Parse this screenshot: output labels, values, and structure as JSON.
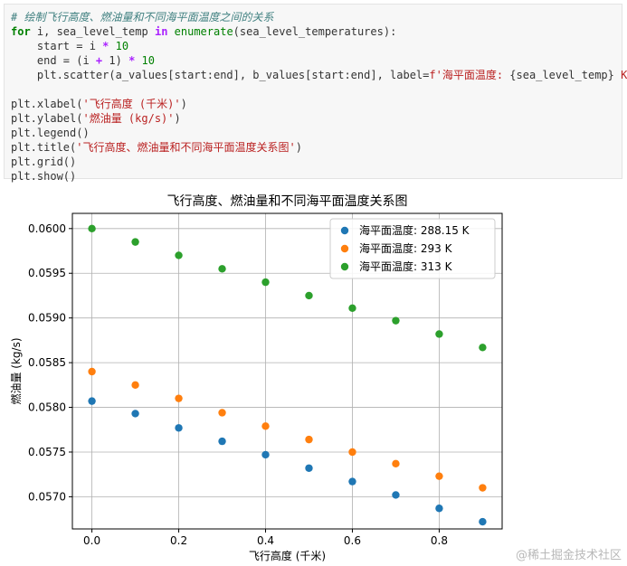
{
  "code": {
    "comment": "# 绘制飞行高度、燃油量和不同海平面温度之间的关系",
    "for_kw": "for",
    "for_vars": " i, sea_level_temp ",
    "in_kw": "in",
    "enumerate": " enumerate",
    "for_rest": "(sea_level_temperatures):",
    "start_prefix": "    start = i ",
    "start_op": "*",
    "start_num": " 10",
    "end_prefix": "    end = (i ",
    "end_op1": "+",
    "end_mid": " 1) ",
    "end_op2": "*",
    "end_num": " 10",
    "scatter_prefix": "    plt.scatter(a_values[start:end], b_values[start:end], label=",
    "scatter_fstr": "f'海平面温度: ",
    "scatter_var": "{sea_level_temp}",
    "scatter_str_end": " K'",
    "scatter_close": ")",
    "xlabel_prefix": "plt.xlabel(",
    "xlabel_str": "'飞行高度 (千米)'",
    "xlabel_close": ")",
    "ylabel_prefix": "plt.ylabel(",
    "ylabel_str": "'燃油量 (kg/s)'",
    "ylabel_close": ")",
    "legend_line": "plt.legend()",
    "title_prefix": "plt.title(",
    "title_str": "'飞行高度、燃油量和不同海平面温度关系图'",
    "title_close": ")",
    "grid_line": "plt.grid()",
    "show_line": "plt.show()"
  },
  "watermark": "@稀土掘金技术社区",
  "chart_data": {
    "type": "scatter",
    "title": "飞行高度、燃油量和不同海平面温度关系图",
    "xlabel": "飞行高度 (千米)",
    "ylabel": "燃油量 (kg/s)",
    "xlim": [
      -0.045,
      0.945
    ],
    "ylim": [
      0.05664,
      0.06017
    ],
    "xticks": [
      0.0,
      0.2,
      0.4,
      0.6,
      0.8
    ],
    "xtick_labels": [
      "0.0",
      "0.2",
      "0.4",
      "0.6",
      "0.8"
    ],
    "yticks": [
      0.057,
      0.0575,
      0.058,
      0.0585,
      0.059,
      0.0595,
      0.06
    ],
    "ytick_labels": [
      "0.0570",
      "0.0575",
      "0.0580",
      "0.0585",
      "0.0590",
      "0.0595",
      "0.0600"
    ],
    "grid": true,
    "legend_position": "top-right",
    "x": [
      0.0,
      0.1,
      0.2,
      0.3,
      0.4,
      0.5,
      0.6,
      0.7,
      0.8,
      0.9
    ],
    "series": [
      {
        "name": "海平面温度: 288.15 K",
        "color": "#1f77b4",
        "values": [
          0.05807,
          0.05793,
          0.05777,
          0.05762,
          0.05747,
          0.05732,
          0.05717,
          0.05702,
          0.05687,
          0.05672
        ]
      },
      {
        "name": "海平面温度: 293 K",
        "color": "#ff7f0e",
        "values": [
          0.0584,
          0.05825,
          0.0581,
          0.05794,
          0.05779,
          0.05764,
          0.0575,
          0.05737,
          0.05723,
          0.0571
        ]
      },
      {
        "name": "海平面温度: 313 K",
        "color": "#2ca02c",
        "values": [
          0.06,
          0.05985,
          0.0597,
          0.05955,
          0.0594,
          0.05925,
          0.05911,
          0.05897,
          0.05882,
          0.05867
        ]
      }
    ]
  }
}
